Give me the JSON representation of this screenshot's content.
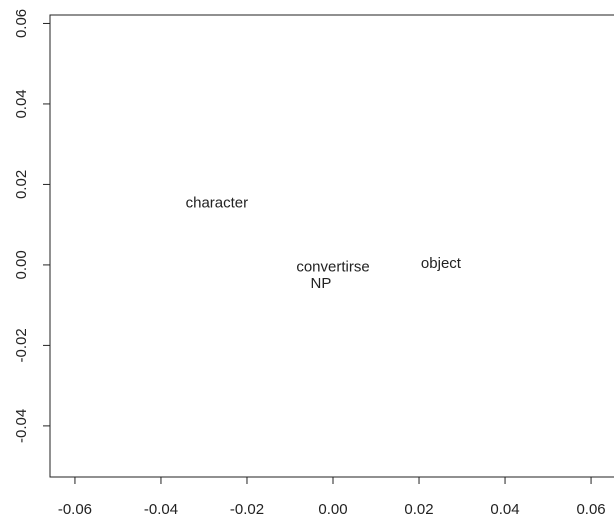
{
  "chart_data": {
    "type": "text-scatter",
    "x": [
      -0.027,
      0.0,
      -0.0028,
      0.0251
    ],
    "values": [
      0.0152,
      -0.0007,
      -0.0047,
      0.0002
    ],
    "labels": [
      "character",
      "convertirse",
      "NP",
      "object"
    ],
    "xlim": [
      -0.0658,
      0.0658
    ],
    "ylim": [
      -0.0527,
      0.0621
    ],
    "xticks": [
      -0.06,
      -0.04,
      -0.02,
      {
        "value": 0,
        "label": "0.00"
      },
      0.02,
      0.04,
      0.06
    ],
    "yticks": [
      -0.04,
      -0.02,
      {
        "value": 0,
        "label": "0.00"
      },
      0.02,
      0.04,
      0.06
    ],
    "color": "#222222"
  }
}
